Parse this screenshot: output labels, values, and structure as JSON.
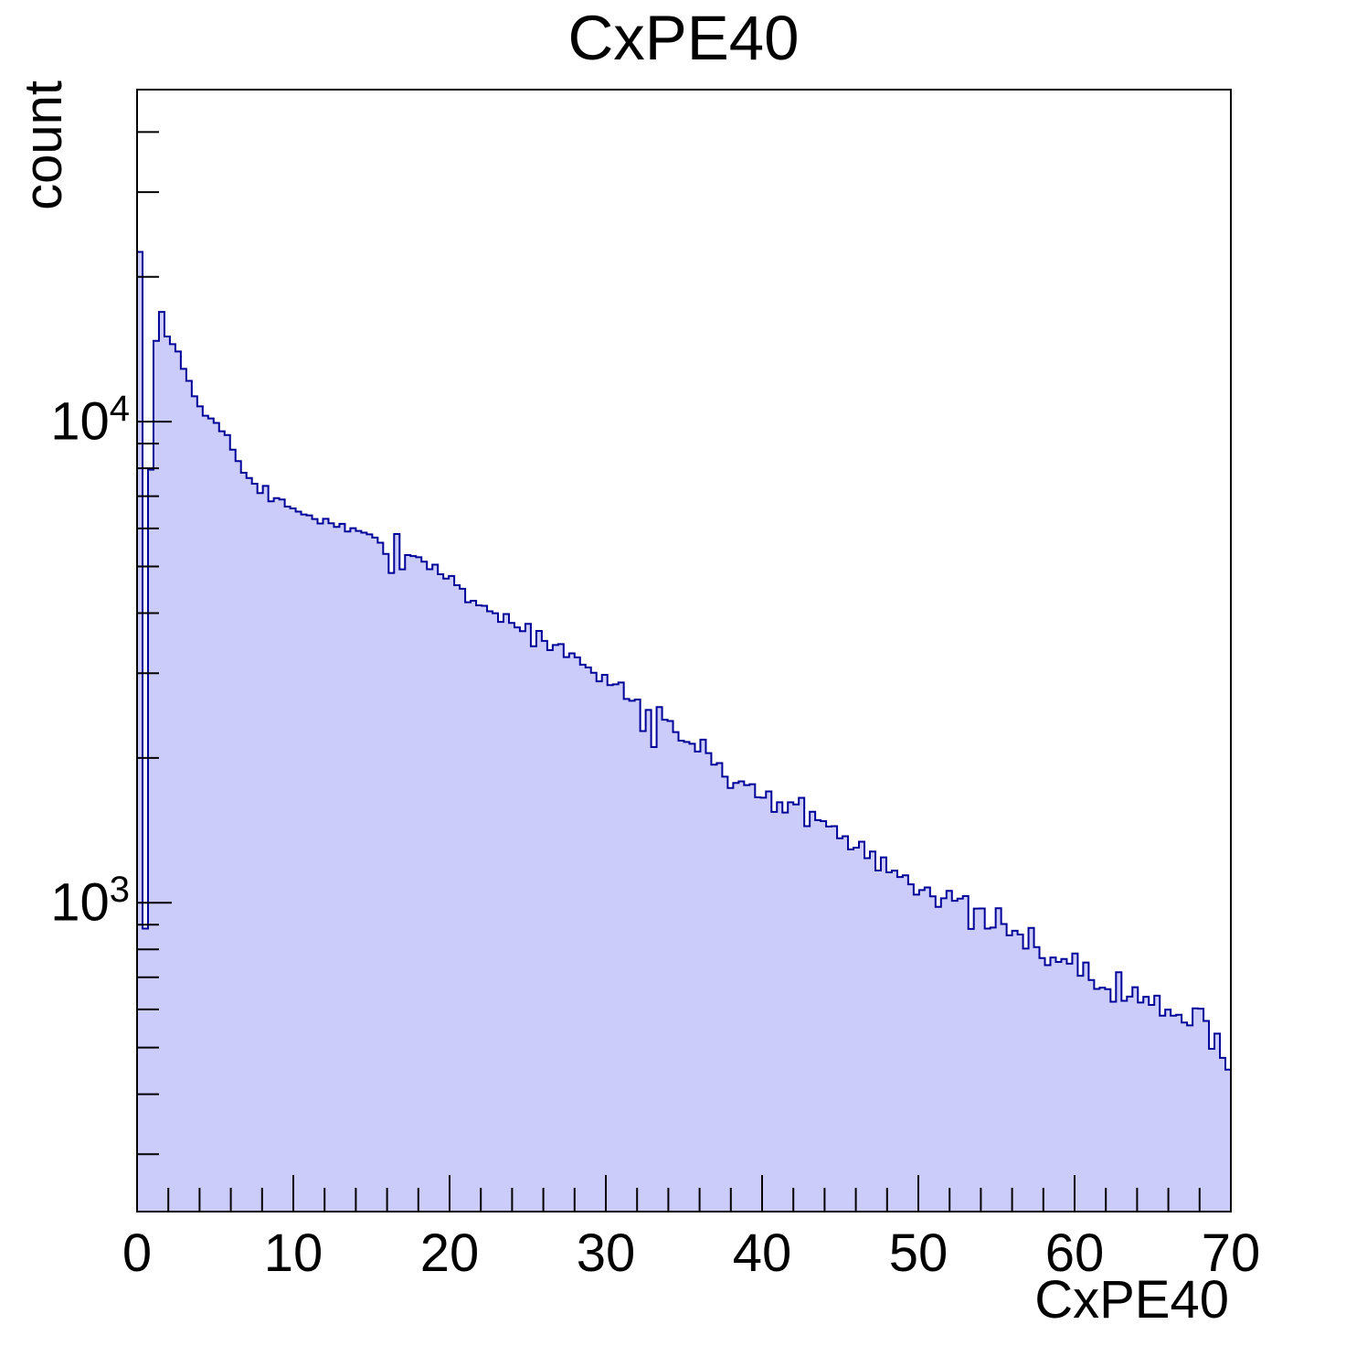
{
  "title": "CxPE40",
  "axes": {
    "x": {
      "label": "CxPE40",
      "min": 0,
      "max": 70,
      "major_ticks": [
        0,
        10,
        20,
        30,
        40,
        50,
        60,
        70
      ],
      "minor_tick_step": 2
    },
    "y": {
      "label": "count",
      "scale": "log",
      "min": 228,
      "max": 49000,
      "major_ticks": [
        1000,
        10000
      ],
      "major_tick_labels": [
        {
          "mantissa": "10",
          "exponent": "3",
          "value": 1000
        },
        {
          "mantissa": "10",
          "exponent": "4",
          "value": 10000
        }
      ]
    }
  },
  "colors": {
    "fill": "#ccccfa",
    "line": "#000099",
    "frame": "#000000",
    "background": "#ffffff",
    "text": "#000000"
  },
  "chart_data": {
    "type": "bar",
    "subtype": "filled-step-histogram",
    "title": "CxPE40",
    "xlabel": "CxPE40",
    "ylabel": "count",
    "xlim": [
      0,
      70
    ],
    "ylim": [
      228,
      49000
    ],
    "yscale": "log",
    "grid": false,
    "legend": false,
    "n_bins": 200,
    "bin_width": 0.35,
    "anchors": [
      [
        0.0,
        150
      ],
      [
        0.18,
        26000
      ],
      [
        0.4,
        4100
      ],
      [
        0.55,
        650
      ],
      [
        0.7,
        2900
      ],
      [
        0.85,
        7500
      ],
      [
        1.0,
        10600
      ],
      [
        1.2,
        14500
      ],
      [
        1.5,
        17400
      ],
      [
        1.75,
        15800
      ],
      [
        2.1,
        14100
      ],
      [
        2.45,
        14800
      ],
      [
        2.8,
        13300
      ],
      [
        3.2,
        12400
      ],
      [
        3.6,
        11600
      ],
      [
        4.0,
        10800
      ],
      [
        4.4,
        10200
      ],
      [
        4.9,
        10200
      ],
      [
        5.3,
        9600
      ],
      [
        5.8,
        9300
      ],
      [
        6.3,
        8500
      ],
      [
        6.8,
        8000
      ],
      [
        7.4,
        7400
      ],
      [
        7.9,
        7100
      ],
      [
        8.15,
        7650
      ],
      [
        8.4,
        6550
      ],
      [
        8.8,
        7000
      ],
      [
        9.5,
        6750
      ],
      [
        10.5,
        6450
      ],
      [
        11.5,
        6300
      ],
      [
        12.5,
        6100
      ],
      [
        13.5,
        5950
      ],
      [
        14.5,
        5800
      ],
      [
        15.5,
        5600
      ],
      [
        16.1,
        5500
      ],
      [
        16.35,
        4700
      ],
      [
        16.6,
        5900
      ],
      [
        16.85,
        4750
      ],
      [
        17.2,
        5400
      ],
      [
        18,
        5200
      ],
      [
        19,
        5000
      ],
      [
        20,
        4750
      ],
      [
        21,
        4350
      ],
      [
        22,
        4150
      ],
      [
        23,
        4000
      ],
      [
        24,
        3830
      ],
      [
        25,
        3650
      ],
      [
        26,
        3500
      ],
      [
        27,
        3350
      ],
      [
        28,
        3200
      ],
      [
        29,
        3020
      ],
      [
        30,
        2900
      ],
      [
        31,
        2780
      ],
      [
        32,
        2660
      ],
      [
        32.55,
        2080
      ],
      [
        32.8,
        2700
      ],
      [
        33.1,
        2060
      ],
      [
        33.45,
        2620
      ],
      [
        34,
        2400
      ],
      [
        35,
        2160
      ],
      [
        36,
        2100
      ],
      [
        37,
        1950
      ],
      [
        38,
        1820
      ],
      [
        39,
        1750
      ],
      [
        40,
        1680
      ],
      [
        41,
        1625
      ],
      [
        42,
        1545
      ],
      [
        42.35,
        1760
      ],
      [
        42.7,
        1500
      ],
      [
        44,
        1470
      ],
      [
        45,
        1380
      ],
      [
        46,
        1320
      ],
      [
        47,
        1260
      ],
      [
        48,
        1200
      ],
      [
        49,
        1150
      ],
      [
        50,
        1110
      ],
      [
        51,
        1040
      ],
      [
        52,
        1000
      ],
      [
        53,
        960
      ],
      [
        54,
        930
      ],
      [
        55,
        890
      ],
      [
        56,
        860
      ],
      [
        57,
        830
      ],
      [
        58,
        805
      ],
      [
        59,
        780
      ],
      [
        60,
        730
      ],
      [
        61,
        700
      ],
      [
        62,
        670
      ],
      [
        63,
        650
      ],
      [
        64,
        635
      ],
      [
        65,
        620
      ],
      [
        66,
        600
      ],
      [
        67,
        580
      ],
      [
        68,
        560
      ],
      [
        69,
        530
      ],
      [
        70,
        490
      ]
    ],
    "noise": {
      "seed": 7,
      "base": 0.008,
      "slope": 0.0008,
      "max": 0.07,
      "start_x": 1.9
    }
  }
}
